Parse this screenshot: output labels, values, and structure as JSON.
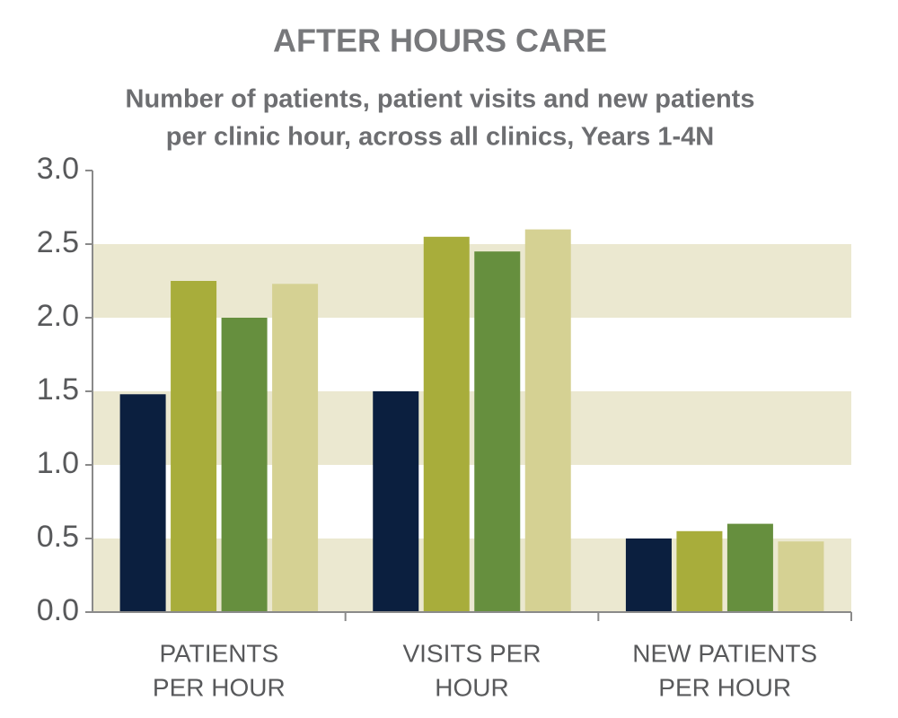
{
  "chart_data": {
    "type": "bar",
    "title": "AFTER HOURS CARE",
    "subtitle": [
      "Number of patients, patient visits and new patients",
      "per clinic hour, across all clinics, Years 1-4N"
    ],
    "categories": [
      [
        "PATIENTS",
        "PER HOUR"
      ],
      [
        "VISITS PER",
        "HOUR"
      ],
      [
        "NEW PATIENTS",
        "PER HOUR"
      ]
    ],
    "series": [
      {
        "color": "#0b1f3f",
        "values": [
          1.48,
          1.5,
          0.5
        ]
      },
      {
        "color": "#a8ad3b",
        "values": [
          2.25,
          2.55,
          0.55
        ]
      },
      {
        "color": "#668f3e",
        "values": [
          2.0,
          2.45,
          0.6
        ]
      },
      {
        "color": "#d5d193",
        "values": [
          2.23,
          2.6,
          0.48
        ]
      }
    ],
    "ylim": [
      0,
      3
    ],
    "yticks": [
      {
        "value": 0,
        "label": "0.0"
      },
      0.5,
      {
        "value": 1,
        "label": "1.0"
      },
      1.5,
      {
        "value": 2,
        "label": "2.0"
      },
      2.5,
      {
        "value": 3,
        "label": "3.0"
      }
    ],
    "bands": true,
    "band_color": "#ebe8d0"
  }
}
